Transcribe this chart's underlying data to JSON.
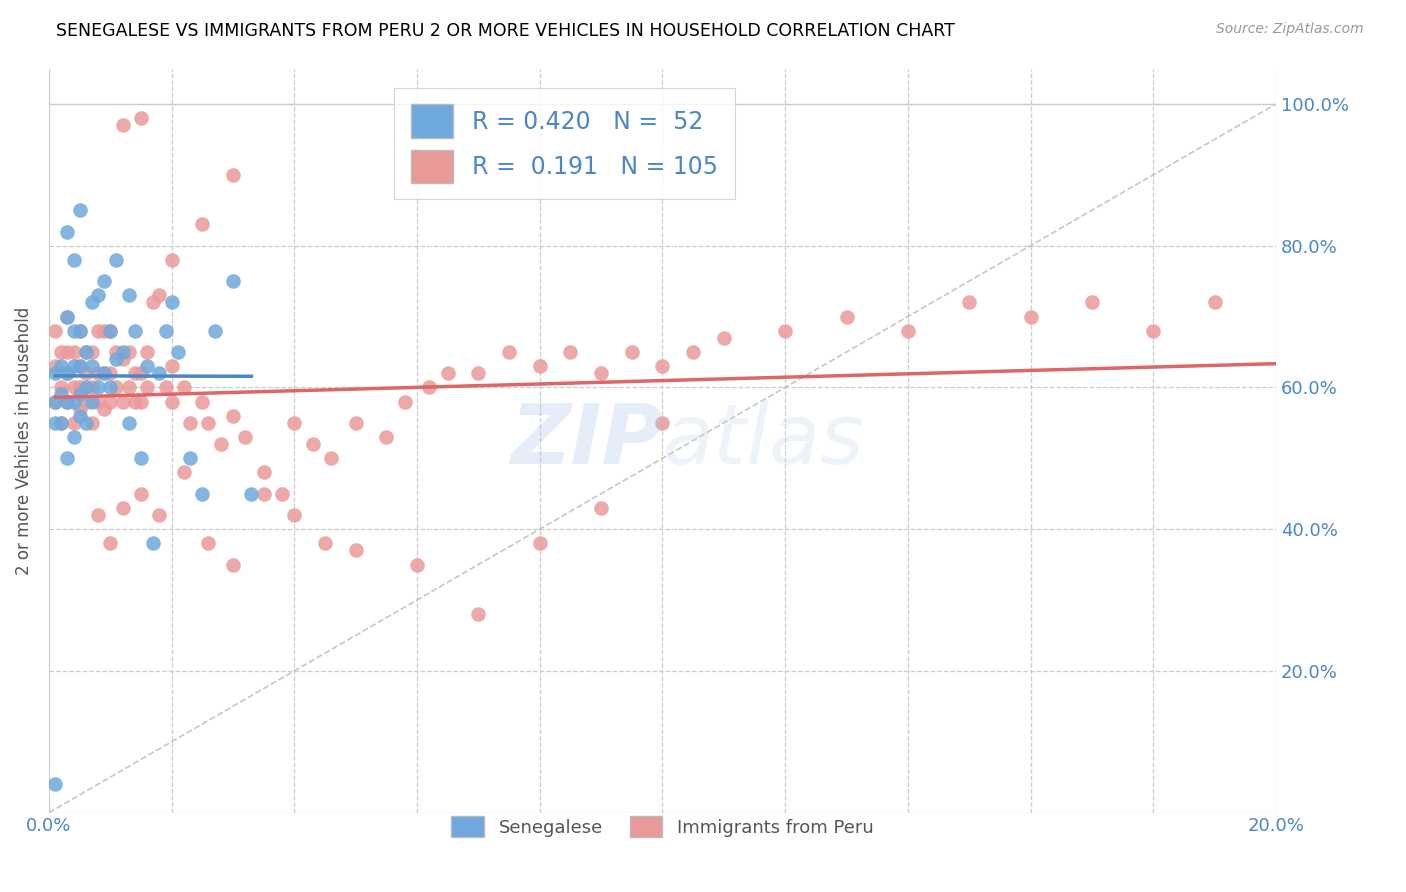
{
  "title": "SENEGALESE VS IMMIGRANTS FROM PERU 2 OR MORE VEHICLES IN HOUSEHOLD CORRELATION CHART",
  "source": "Source: ZipAtlas.com",
  "ylabel": "2 or more Vehicles in Household",
  "xlim": [
    0.0,
    0.2
  ],
  "ylim": [
    0.0,
    1.05
  ],
  "senegalese_color": "#6fa8dc",
  "peru_color": "#ea9999",
  "trendline_senegalese_color": "#4a86c8",
  "trendline_peru_color": "#e06666",
  "diagonal_color": "#b8b8b8",
  "R_senegalese": 0.42,
  "N_senegalese": 52,
  "R_peru": 0.191,
  "N_peru": 105,
  "watermark": "ZIPatlas",
  "sen_x": [
    0.001,
    0.001,
    0.001,
    0.001,
    0.002,
    0.002,
    0.002,
    0.003,
    0.003,
    0.003,
    0.003,
    0.003,
    0.004,
    0.004,
    0.004,
    0.004,
    0.004,
    0.005,
    0.005,
    0.005,
    0.005,
    0.005,
    0.006,
    0.006,
    0.006,
    0.007,
    0.007,
    0.007,
    0.008,
    0.008,
    0.009,
    0.009,
    0.01,
    0.01,
    0.011,
    0.011,
    0.012,
    0.013,
    0.013,
    0.014,
    0.015,
    0.016,
    0.017,
    0.018,
    0.019,
    0.02,
    0.021,
    0.023,
    0.025,
    0.027,
    0.03,
    0.033
  ],
  "sen_y": [
    0.04,
    0.55,
    0.58,
    0.62,
    0.55,
    0.59,
    0.63,
    0.5,
    0.58,
    0.62,
    0.7,
    0.82,
    0.53,
    0.58,
    0.63,
    0.68,
    0.78,
    0.56,
    0.59,
    0.63,
    0.68,
    0.85,
    0.55,
    0.6,
    0.65,
    0.58,
    0.63,
    0.72,
    0.6,
    0.73,
    0.62,
    0.75,
    0.6,
    0.68,
    0.64,
    0.78,
    0.65,
    0.55,
    0.73,
    0.68,
    0.5,
    0.63,
    0.38,
    0.62,
    0.68,
    0.72,
    0.65,
    0.5,
    0.45,
    0.68,
    0.75,
    0.45
  ],
  "peru_x": [
    0.001,
    0.001,
    0.001,
    0.002,
    0.002,
    0.002,
    0.003,
    0.003,
    0.003,
    0.003,
    0.004,
    0.004,
    0.004,
    0.005,
    0.005,
    0.005,
    0.005,
    0.006,
    0.006,
    0.006,
    0.007,
    0.007,
    0.007,
    0.008,
    0.008,
    0.008,
    0.009,
    0.009,
    0.009,
    0.01,
    0.01,
    0.01,
    0.011,
    0.011,
    0.012,
    0.012,
    0.013,
    0.013,
    0.014,
    0.014,
    0.015,
    0.015,
    0.016,
    0.016,
    0.017,
    0.018,
    0.019,
    0.02,
    0.02,
    0.022,
    0.023,
    0.025,
    0.026,
    0.028,
    0.03,
    0.032,
    0.035,
    0.038,
    0.04,
    0.043,
    0.046,
    0.05,
    0.055,
    0.058,
    0.062,
    0.065,
    0.07,
    0.075,
    0.08,
    0.085,
    0.09,
    0.095,
    0.1,
    0.105,
    0.11,
    0.12,
    0.13,
    0.14,
    0.15,
    0.16,
    0.17,
    0.18,
    0.19,
    0.008,
    0.01,
    0.012,
    0.015,
    0.018,
    0.022,
    0.026,
    0.03,
    0.035,
    0.04,
    0.045,
    0.05,
    0.06,
    0.07,
    0.08,
    0.09,
    0.1,
    0.012,
    0.015,
    0.02,
    0.025,
    0.03
  ],
  "peru_y": [
    0.58,
    0.63,
    0.68,
    0.55,
    0.6,
    0.65,
    0.58,
    0.62,
    0.65,
    0.7,
    0.55,
    0.6,
    0.65,
    0.57,
    0.6,
    0.63,
    0.68,
    0.58,
    0.62,
    0.65,
    0.55,
    0.6,
    0.65,
    0.58,
    0.62,
    0.68,
    0.57,
    0.62,
    0.68,
    0.58,
    0.62,
    0.68,
    0.6,
    0.65,
    0.58,
    0.64,
    0.6,
    0.65,
    0.58,
    0.62,
    0.58,
    0.62,
    0.6,
    0.65,
    0.72,
    0.73,
    0.6,
    0.58,
    0.63,
    0.6,
    0.55,
    0.58,
    0.55,
    0.52,
    0.56,
    0.53,
    0.48,
    0.45,
    0.55,
    0.52,
    0.5,
    0.55,
    0.53,
    0.58,
    0.6,
    0.62,
    0.62,
    0.65,
    0.63,
    0.65,
    0.62,
    0.65,
    0.63,
    0.65,
    0.67,
    0.68,
    0.7,
    0.68,
    0.72,
    0.7,
    0.72,
    0.68,
    0.72,
    0.42,
    0.38,
    0.43,
    0.45,
    0.42,
    0.48,
    0.38,
    0.35,
    0.45,
    0.42,
    0.38,
    0.37,
    0.35,
    0.28,
    0.38,
    0.43,
    0.55,
    0.97,
    0.98,
    0.78,
    0.83,
    0.9
  ]
}
